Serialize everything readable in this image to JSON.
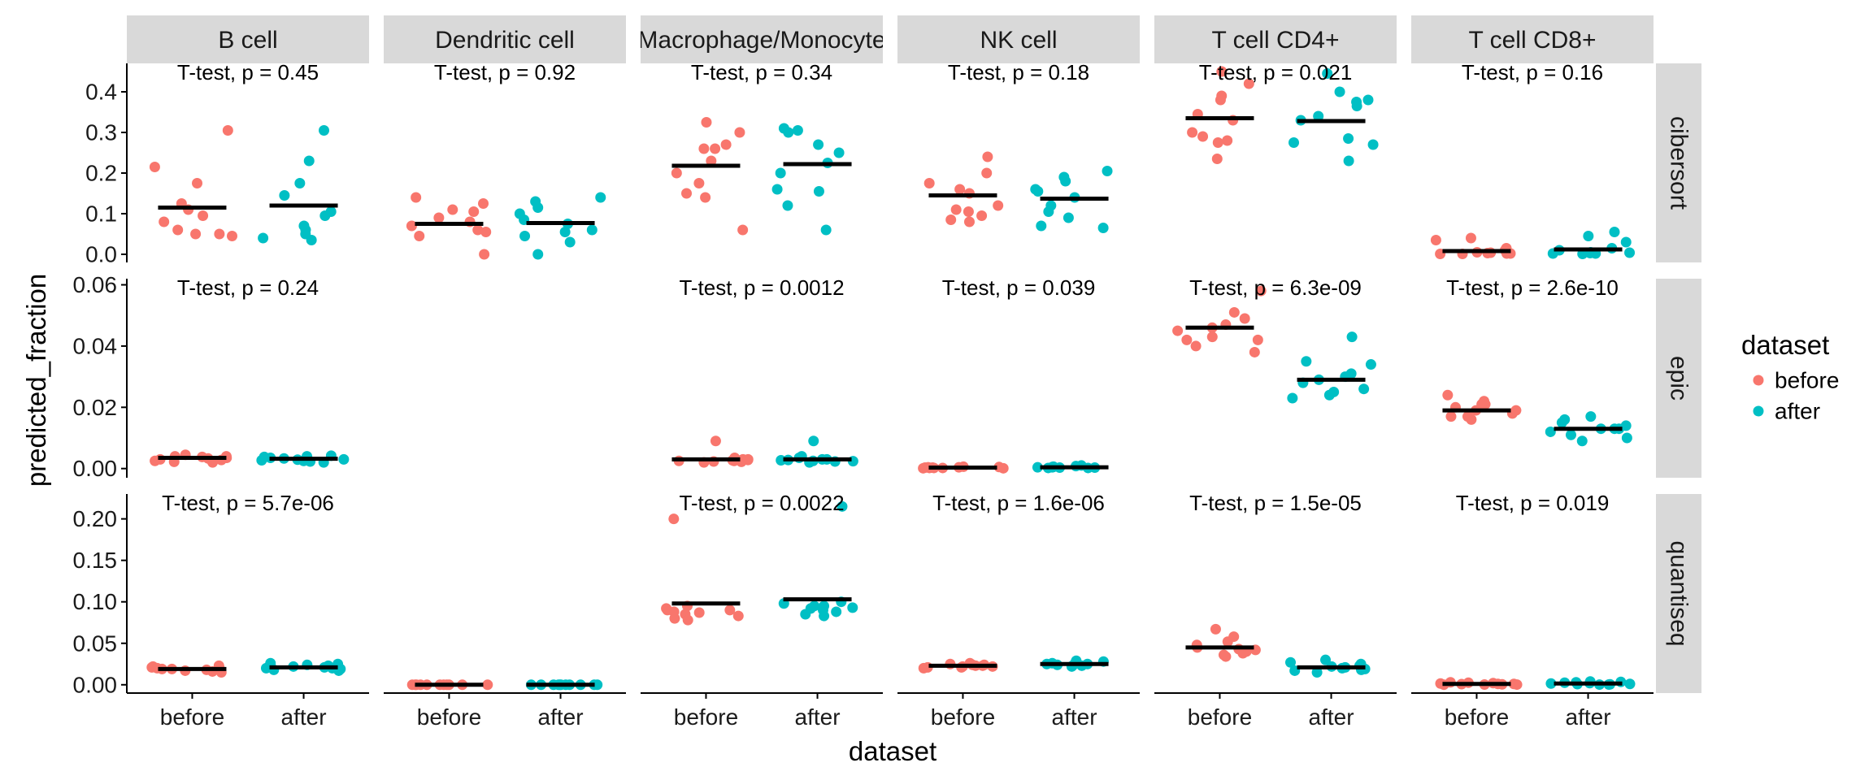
{
  "chart_data": {
    "type": "scatter",
    "title": "",
    "xlabel": "dataset",
    "ylabel": "predicted_fraction",
    "x_categories": [
      "before",
      "after"
    ],
    "cell_types": [
      "B cell",
      "Dendritic cell",
      "Macrophage/Monocyte",
      "NK cell",
      "T cell CD4+",
      "T cell CD8+"
    ],
    "methods": [
      "cibersort",
      "epic",
      "quantiseq"
    ],
    "legend": {
      "title": "dataset",
      "placement": "right",
      "entries": [
        {
          "label": "before",
          "color": "#F8766D"
        },
        {
          "label": "after",
          "color": "#00BFC4"
        }
      ]
    },
    "rows": [
      {
        "method": "cibersort",
        "ylim": [
          -0.02,
          0.47
        ],
        "y_ticks": [
          0.0,
          0.1,
          0.2,
          0.3,
          0.4
        ],
        "y_tick_labels": [
          "0.0",
          "0.1",
          "0.2",
          "0.3",
          "0.4"
        ],
        "panels": [
          {
            "cell_type": "B cell",
            "pvalue_label": "T-test, p = 0.45",
            "before_mean": 0.115,
            "after_mean": 0.12,
            "before": [
              0.305,
              0.215,
              0.175,
              0.125,
              0.11,
              0.095,
              0.08,
              0.06,
              0.05,
              0.045,
              0.05
            ],
            "after": [
              0.305,
              0.23,
              0.175,
              0.145,
              0.105,
              0.095,
              0.07,
              0.06,
              0.05,
              0.04,
              0.035
            ]
          },
          {
            "cell_type": "Dendritic cell",
            "pvalue_label": "T-test, p = 0.92",
            "before_mean": 0.075,
            "after_mean": 0.077,
            "before": [
              0.14,
              0.125,
              0.11,
              0.105,
              0.09,
              0.08,
              0.07,
              0.06,
              0.055,
              0.045,
              0.0
            ],
            "after": [
              0.14,
              0.13,
              0.115,
              0.1,
              0.085,
              0.075,
              0.06,
              0.055,
              0.045,
              0.03,
              0.0
            ]
          },
          {
            "cell_type": "Macrophage/Monocyte",
            "pvalue_label": "T-test, p = 0.34",
            "before_mean": 0.218,
            "after_mean": 0.222,
            "before": [
              0.325,
              0.3,
              0.27,
              0.26,
              0.26,
              0.23,
              0.2,
              0.175,
              0.15,
              0.14,
              0.06
            ],
            "after": [
              0.31,
              0.305,
              0.3,
              0.27,
              0.25,
              0.225,
              0.2,
              0.16,
              0.155,
              0.12,
              0.06
            ]
          },
          {
            "cell_type": "NK cell",
            "pvalue_label": "T-test, p = 0.18",
            "before_mean": 0.145,
            "after_mean": 0.137,
            "before": [
              0.24,
              0.2,
              0.175,
              0.16,
              0.15,
              0.12,
              0.11,
              0.105,
              0.095,
              0.085,
              0.08
            ],
            "after": [
              0.205,
              0.19,
              0.18,
              0.16,
              0.155,
              0.14,
              0.12,
              0.105,
              0.09,
              0.07,
              0.065
            ]
          },
          {
            "cell_type": "T cell CD4+",
            "pvalue_label": "T-test, p = 0.021",
            "before_mean": 0.335,
            "after_mean": 0.328,
            "before": [
              0.45,
              0.42,
              0.39,
              0.38,
              0.345,
              0.33,
              0.3,
              0.29,
              0.28,
              0.275,
              0.235
            ],
            "after": [
              0.445,
              0.4,
              0.38,
              0.375,
              0.365,
              0.34,
              0.33,
              0.285,
              0.275,
              0.27,
              0.23
            ]
          },
          {
            "cell_type": "T cell CD8+",
            "pvalue_label": "T-test, p = 0.16",
            "before_mean": 0.008,
            "after_mean": 0.012,
            "before": [
              0.04,
              0.035,
              0.015,
              0.01,
              0.005,
              0.004,
              0.003,
              0.002,
              0.002,
              0.001,
              0.001
            ],
            "after": [
              0.055,
              0.045,
              0.03,
              0.015,
              0.01,
              0.005,
              0.004,
              0.003,
              0.002,
              0.002,
              0.001
            ]
          }
        ]
      },
      {
        "method": "epic",
        "ylim": [
          -0.003,
          0.062
        ],
        "y_ticks": [
          0.0,
          0.02,
          0.04,
          0.06
        ],
        "y_tick_labels": [
          "0.00",
          "0.02",
          "0.04",
          "0.06"
        ],
        "panels": [
          {
            "cell_type": "B cell",
            "pvalue_label": "T-test, p = 0.24",
            "before_mean": 0.0035,
            "after_mean": 0.0032,
            "before": [
              0.0045,
              0.004,
              0.004,
              0.0038,
              0.0035,
              0.0033,
              0.003,
              0.0028,
              0.0025,
              0.0022,
              0.002
            ],
            "after": [
              0.0042,
              0.004,
              0.0038,
              0.0035,
              0.0033,
              0.003,
              0.0029,
              0.0027,
              0.0025,
              0.0023,
              0.002
            ]
          },
          {
            "cell_type": "Dendritic cell",
            "pvalue_label": "",
            "before_mean": null,
            "after_mean": null,
            "before": [],
            "after": []
          },
          {
            "cell_type": "Macrophage/Monocyte",
            "pvalue_label": "T-test, p = 0.0012",
            "before_mean": 0.003,
            "after_mean": 0.003,
            "before": [
              0.009,
              0.0035,
              0.003,
              0.003,
              0.0028,
              0.0027,
              0.0025,
              0.0025,
              0.0023,
              0.0022,
              0.002
            ],
            "after": [
              0.009,
              0.004,
              0.0035,
              0.003,
              0.003,
              0.0028,
              0.0027,
              0.0025,
              0.0024,
              0.0023,
              0.002
            ]
          },
          {
            "cell_type": "NK cell",
            "pvalue_label": "T-test, p = 0.039",
            "before_mean": 0.0003,
            "after_mean": 0.0004,
            "before": [
              0.0006,
              0.0005,
              0.0004,
              0.0004,
              0.0003,
              0.0003,
              0.0002,
              0.0002,
              0.0002,
              0.0001,
              0.0001
            ],
            "after": [
              0.001,
              0.0008,
              0.0006,
              0.0005,
              0.0005,
              0.0004,
              0.0004,
              0.0003,
              0.0003,
              0.0002,
              0.0002
            ]
          },
          {
            "cell_type": "T cell CD4+",
            "pvalue_label": "T-test, p = 6.3e-09",
            "before_mean": 0.046,
            "after_mean": 0.029,
            "before": [
              0.058,
              0.051,
              0.049,
              0.047,
              0.046,
              0.045,
              0.043,
              0.042,
              0.042,
              0.04,
              0.038
            ],
            "after": [
              0.043,
              0.035,
              0.034,
              0.031,
              0.03,
              0.029,
              0.028,
              0.026,
              0.025,
              0.024,
              0.023
            ]
          },
          {
            "cell_type": "T cell CD8+",
            "pvalue_label": "T-test, p = 2.6e-10",
            "before_mean": 0.019,
            "after_mean": 0.013,
            "before": [
              0.024,
              0.022,
              0.021,
              0.021,
              0.02,
              0.019,
              0.019,
              0.018,
              0.017,
              0.017,
              0.016
            ],
            "after": [
              0.017,
              0.016,
              0.015,
              0.014,
              0.013,
              0.013,
              0.013,
              0.012,
              0.011,
              0.01,
              0.009
            ]
          }
        ]
      },
      {
        "method": "quantiseq",
        "ylim": [
          -0.01,
          0.23
        ],
        "y_ticks": [
          0.0,
          0.05,
          0.1,
          0.15,
          0.2
        ],
        "y_tick_labels": [
          "0.00",
          "0.05",
          "0.10",
          "0.15",
          "0.20"
        ],
        "panels": [
          {
            "cell_type": "B cell",
            "pvalue_label": "T-test, p = 5.7e-06",
            "before_mean": 0.019,
            "after_mean": 0.021,
            "before": [
              0.023,
              0.022,
              0.021,
              0.02,
              0.02,
              0.019,
              0.019,
              0.018,
              0.017,
              0.016,
              0.015
            ],
            "after": [
              0.026,
              0.025,
              0.024,
              0.023,
              0.022,
              0.021,
              0.02,
              0.02,
              0.019,
              0.018,
              0.017
            ]
          },
          {
            "cell_type": "Dendritic cell",
            "pvalue_label": "",
            "before_mean": 0.0,
            "after_mean": 0.0,
            "before": [
              0.0,
              0.0,
              0.0,
              0.0,
              0.0,
              0.0,
              0.0,
              0.0,
              0.0,
              0.0,
              0.0
            ],
            "after": [
              0.0,
              0.0,
              0.0,
              0.0,
              0.0,
              0.0,
              0.0,
              0.0,
              0.0,
              0.0,
              0.0
            ]
          },
          {
            "cell_type": "Macrophage/Monocyte",
            "pvalue_label": "T-test, p = 0.0022",
            "before_mean": 0.098,
            "after_mean": 0.103,
            "before": [
              0.2,
              0.095,
              0.092,
              0.09,
              0.09,
              0.088,
              0.087,
              0.085,
              0.083,
              0.08,
              0.078
            ],
            "after": [
              0.215,
              0.1,
              0.098,
              0.095,
              0.095,
              0.093,
              0.092,
              0.09,
              0.088,
              0.085,
              0.083
            ]
          },
          {
            "cell_type": "NK cell",
            "pvalue_label": "T-test, p = 1.6e-06",
            "before_mean": 0.023,
            "after_mean": 0.025,
            "before": [
              0.026,
              0.025,
              0.024,
              0.024,
              0.023,
              0.023,
              0.022,
              0.022,
              0.021,
              0.021,
              0.02
            ],
            "after": [
              0.029,
              0.028,
              0.027,
              0.026,
              0.026,
              0.025,
              0.025,
              0.024,
              0.023,
              0.023,
              0.022
            ]
          },
          {
            "cell_type": "T cell CD4+",
            "pvalue_label": "T-test, p = 1.5e-05",
            "before_mean": 0.045,
            "after_mean": 0.021,
            "before": [
              0.067,
              0.058,
              0.052,
              0.048,
              0.045,
              0.043,
              0.042,
              0.04,
              0.038,
              0.036,
              0.034
            ],
            "after": [
              0.03,
              0.027,
              0.025,
              0.023,
              0.022,
              0.021,
              0.02,
              0.019,
              0.018,
              0.017,
              0.015
            ]
          },
          {
            "cell_type": "T cell CD8+",
            "pvalue_label": "T-test, p = 0.019",
            "before_mean": 0.001,
            "after_mean": 0.0015,
            "before": [
              0.003,
              0.0025,
              0.002,
              0.0015,
              0.001,
              0.001,
              0.0008,
              0.0005,
              0.0003,
              0.0002,
              0.0001
            ],
            "after": [
              0.004,
              0.0035,
              0.003,
              0.0025,
              0.002,
              0.0015,
              0.001,
              0.0008,
              0.0005,
              0.0003,
              0.0002
            ]
          }
        ]
      }
    ]
  }
}
